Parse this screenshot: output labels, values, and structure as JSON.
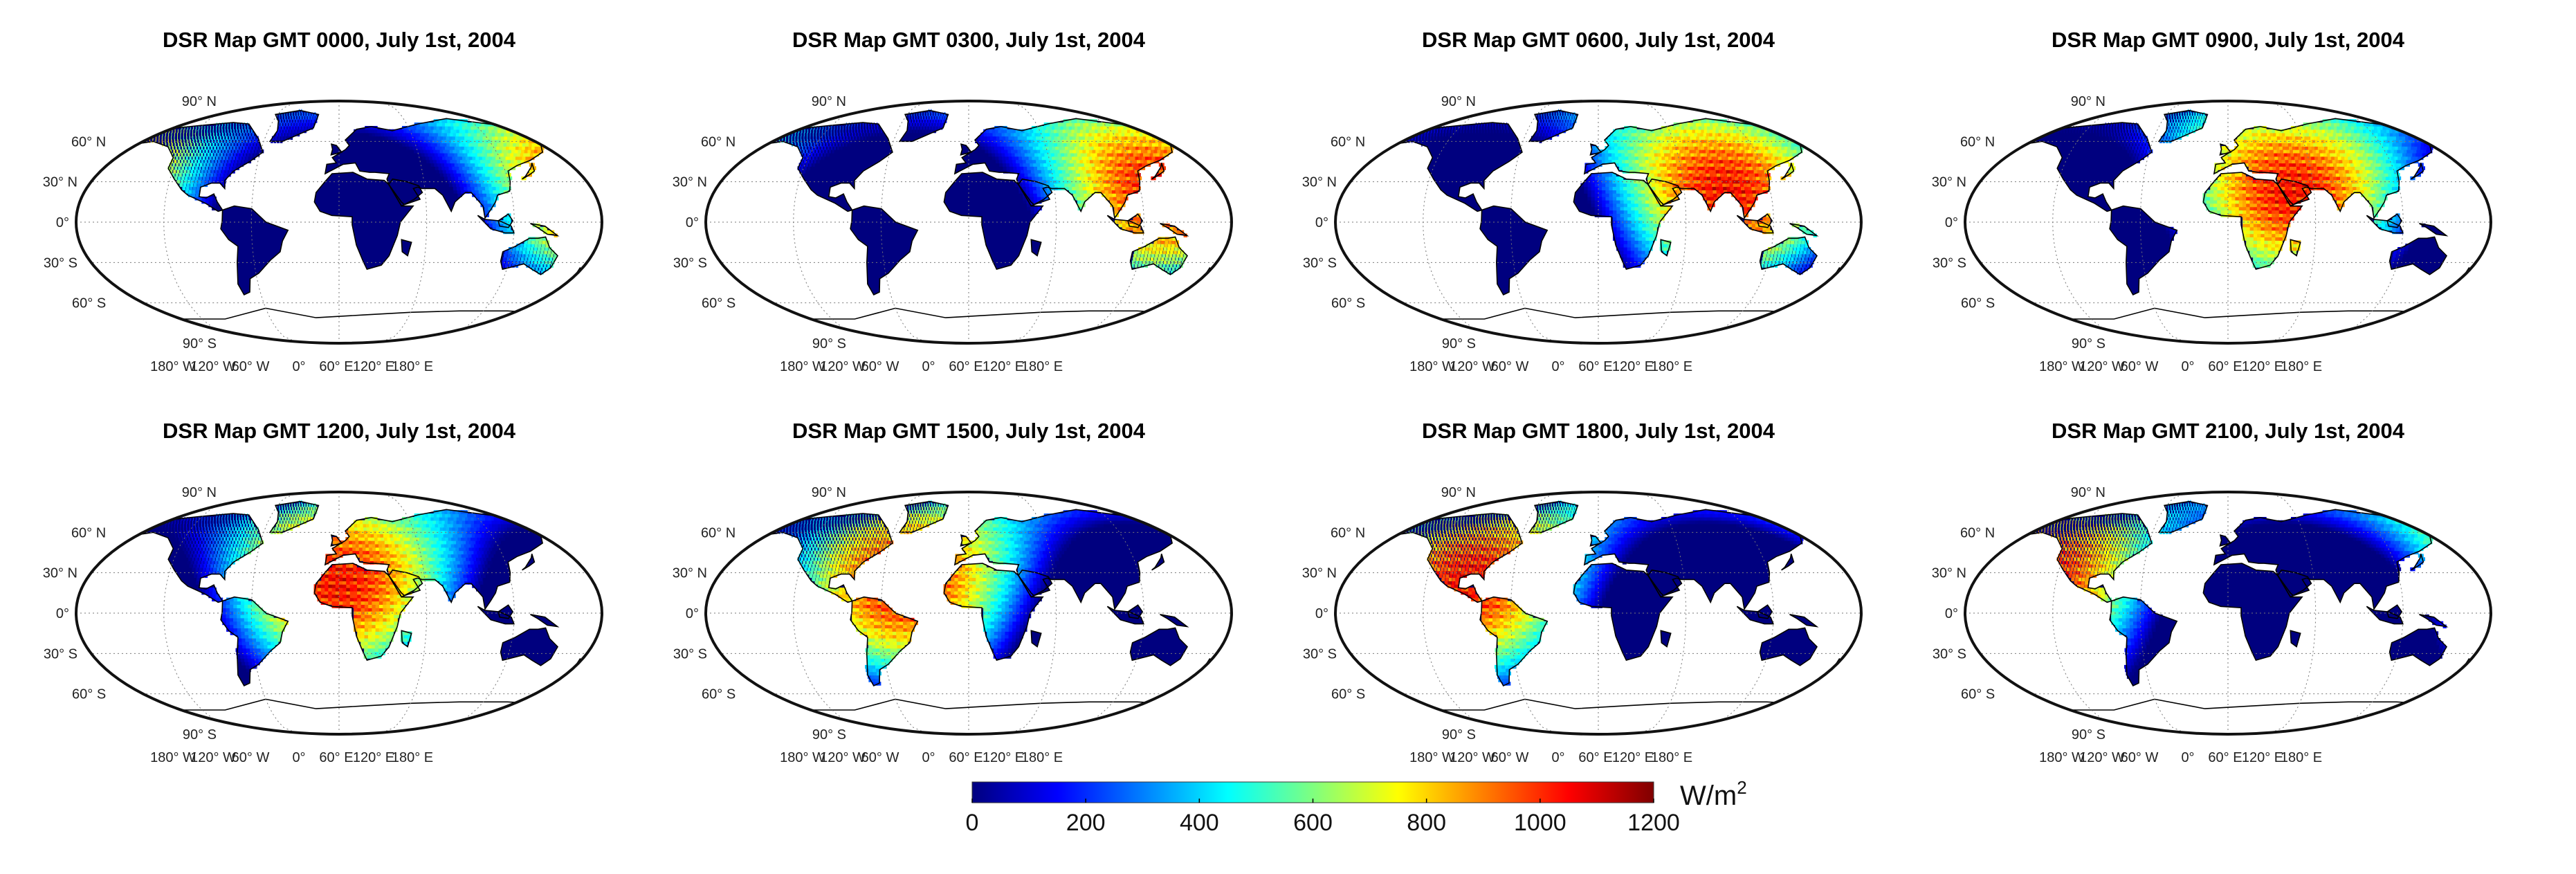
{
  "figure": {
    "colorbar": {
      "unit": "W/m",
      "unit_sup": "2",
      "ticks": [
        "0",
        "200",
        "400",
        "600",
        "800",
        "1000",
        "1200"
      ],
      "min": 0,
      "max": 1200,
      "colors": [
        "#00007f",
        "#0000ff",
        "#007fff",
        "#00ffff",
        "#7fff7f",
        "#ffff00",
        "#ff7f00",
        "#ff0000",
        "#7f0000"
      ]
    },
    "lat_labels": [
      {
        "text": "90° N",
        "lat": 90
      },
      {
        "text": "60° N",
        "lat": 60
      },
      {
        "text": "30° N",
        "lat": 30
      },
      {
        "text": "0°",
        "lat": 0
      },
      {
        "text": "30° S",
        "lat": -30
      },
      {
        "text": "60° S",
        "lat": -60
      },
      {
        "text": "90° S",
        "lat": -90
      }
    ],
    "lon_labels": [
      {
        "text": "180° W",
        "lon": -180
      },
      {
        "text": "120° W",
        "lon": -120
      },
      {
        "text": "60° W",
        "lon": -60
      },
      {
        "text": "0°",
        "lon": 0
      },
      {
        "text": "60° E",
        "lon": 60
      },
      {
        "text": "120° E",
        "lon": 120
      },
      {
        "text": "180° E",
        "lon": 180
      }
    ],
    "panels": [
      {
        "title": "DSR Map GMT 0000, July 1st, 2004",
        "sun_lon": 180
      },
      {
        "title": "DSR Map GMT 0300, July 1st, 2004",
        "sun_lon": 135
      },
      {
        "title": "DSR Map GMT 0600, July 1st, 2004",
        "sun_lon": 90
      },
      {
        "title": "DSR Map GMT 0900, July 1st, 2004",
        "sun_lon": 45
      },
      {
        "title": "DSR Map GMT 1200, July 1st, 2004",
        "sun_lon": 0
      },
      {
        "title": "DSR Map GMT 1500, July 1st, 2004",
        "sun_lon": -45
      },
      {
        "title": "DSR Map GMT 1800, July 1st, 2004",
        "sun_lon": -90
      },
      {
        "title": "DSR Map GMT 2100, July 1st, 2004",
        "sun_lon": -135
      }
    ]
  }
}
